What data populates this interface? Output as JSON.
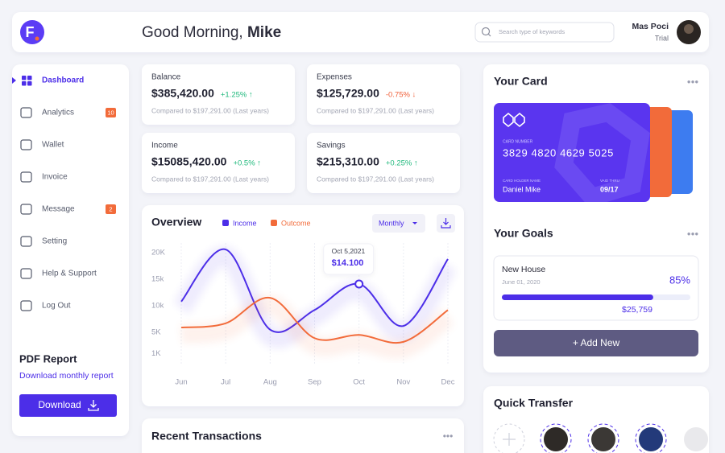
{
  "brand": {
    "logo": "F"
  },
  "header": {
    "greeting": "Good Morning,",
    "name": "Mike",
    "search_placeholder": "Search type of keywords",
    "user_name": "Mas Poci",
    "user_role": "Trial"
  },
  "sidebar": {
    "items": [
      {
        "label": "Dashboard"
      },
      {
        "label": "Analytics",
        "badge": "10"
      },
      {
        "label": "Wallet"
      },
      {
        "label": "Invoice"
      },
      {
        "label": "Message",
        "badge": "2"
      },
      {
        "label": "Setting"
      },
      {
        "label": "Help & Support"
      },
      {
        "label": "Log Out"
      }
    ],
    "report": {
      "title": "PDF Report",
      "link": "Download monthly report",
      "button": "Download"
    }
  },
  "stats": [
    {
      "label": "Balance",
      "amount": "$385,420.00",
      "change": "+1.25% ↑",
      "compare": "Compared to $197,291.00 (Last years)"
    },
    {
      "label": "Expenses",
      "amount": "$125,729.00",
      "change": "-0.75% ↓",
      "compare": "Compared to $197,291.00 (Last years)"
    },
    {
      "label": "Income",
      "amount": "$15085,420.00",
      "change": "+0.5% ↑",
      "compare": "Compared to $197,291.00 (Last years)"
    },
    {
      "label": "Savings",
      "amount": "$215,310.00",
      "change": "+0.25% ↑",
      "compare": "Compared to $197,291.00 (Last years)"
    }
  ],
  "overview": {
    "title": "Overview",
    "period": "Monthly",
    "tooltip": {
      "date": "Oct 5,2021",
      "label": "$14.100"
    },
    "chart_data": {
      "type": "line",
      "categories": [
        "Jun",
        "Jul",
        "Aug",
        "Sep",
        "Oct",
        "Nov",
        "Dec"
      ],
      "series": [
        {
          "name": "Income",
          "color": "#4c2ee8",
          "values": [
            10800,
            20600,
            5500,
            9200,
            14100,
            6200,
            18800
          ]
        },
        {
          "name": "Outcome",
          "color": "#f26b3a",
          "values": [
            5900,
            6700,
            11500,
            3900,
            4500,
            3200,
            9200
          ]
        }
      ],
      "ylim": [
        0,
        20000
      ],
      "yticks": [
        {
          "value": 20000,
          "label": "20K"
        },
        {
          "value": 15000,
          "label": "15k"
        },
        {
          "value": 10000,
          "label": "10k"
        },
        {
          "value": 5000,
          "label": "5K"
        },
        {
          "value": 1000,
          "label": "1K"
        }
      ],
      "grid": true
    }
  },
  "transactions": {
    "title": "Recent Transactions"
  },
  "card": {
    "title": "Your Card",
    "number_label": "CARD NUMBER",
    "number": "3829 4820 4629 5025",
    "holder_label": "CARD HOLDER NAME",
    "holder": "Daniel Mike",
    "valid_label": "VAID THRU",
    "valid": "09/17"
  },
  "goals": {
    "title": "Your Goals",
    "name": "New House",
    "date": "June 01, 2020",
    "progress": {
      "value": 85,
      "label": "85%"
    },
    "amount": "$25,759",
    "button": "+ Add New"
  },
  "transfer": {
    "title": "Quick Transfer"
  }
}
